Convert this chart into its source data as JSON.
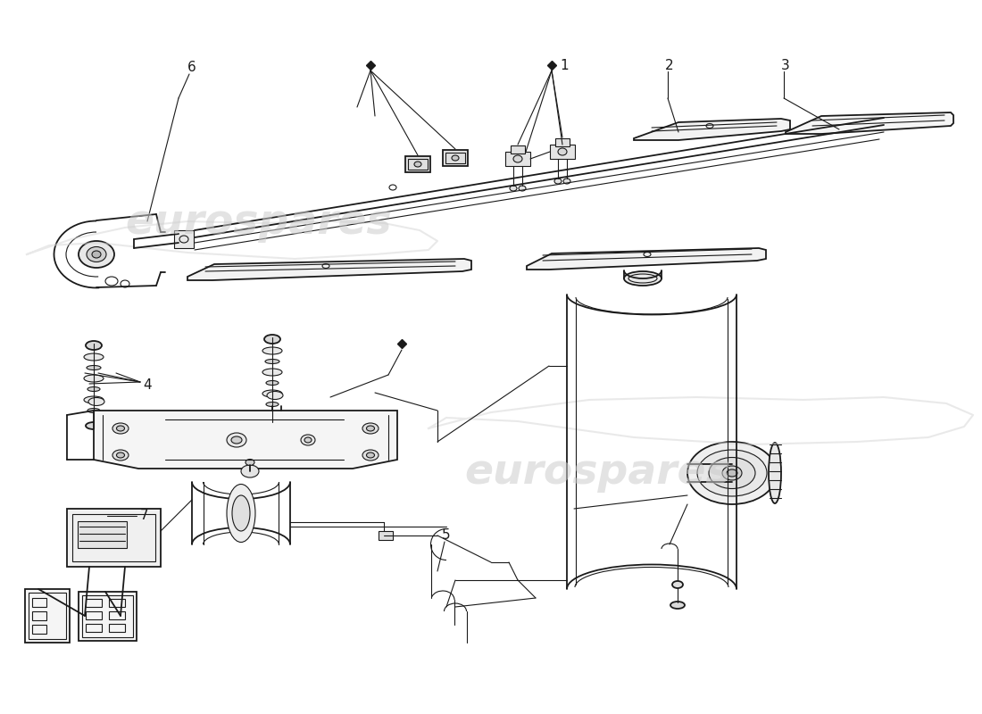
{
  "background_color": "#ffffff",
  "line_color": "#1a1a1a",
  "label_color": "#111111",
  "watermark_color": "#cccccc",
  "watermark_text": "eurospares"
}
